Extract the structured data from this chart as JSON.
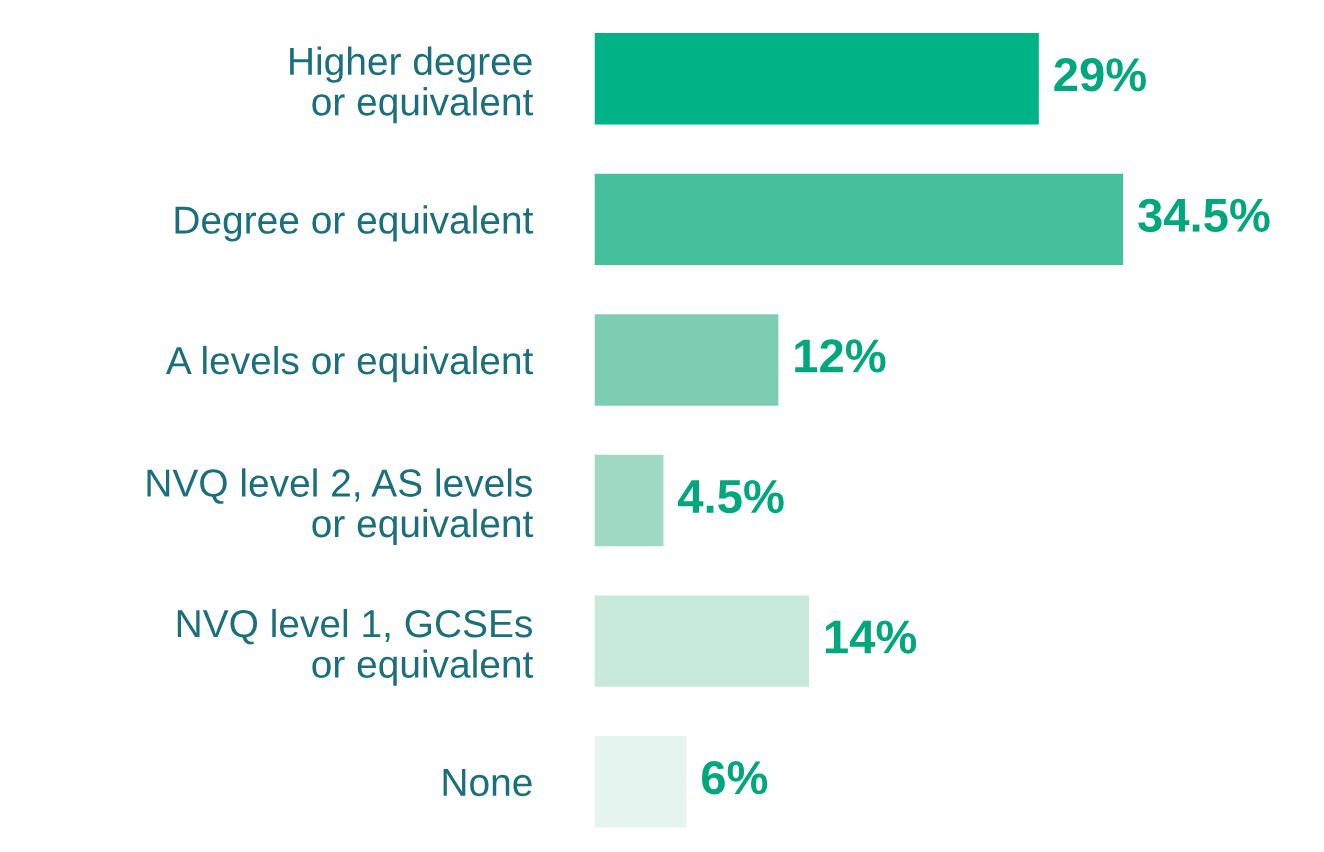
{
  "chart_data": {
    "type": "bar",
    "orientation": "horizontal",
    "categories": [
      "Higher degree\nor equivalent",
      "Degree or equivalent",
      "A levels or equivalent",
      "NVQ level 2, AS levels\nor equivalent",
      "NVQ level 1, GCSEs\nor equivalent",
      "None"
    ],
    "values": [
      29,
      34.5,
      12,
      4.5,
      14,
      6
    ],
    "colors": [
      "#00b386",
      "#45bf9c",
      "#7ccdb1",
      "#9fd9c4",
      "#c6e9dc",
      "#e5f4ee"
    ],
    "value_labels": [
      "29%",
      "34.5%",
      "12%",
      "4.5%",
      "14%",
      "6%"
    ],
    "data_labels": false,
    "grid": false,
    "legend": false
  }
}
